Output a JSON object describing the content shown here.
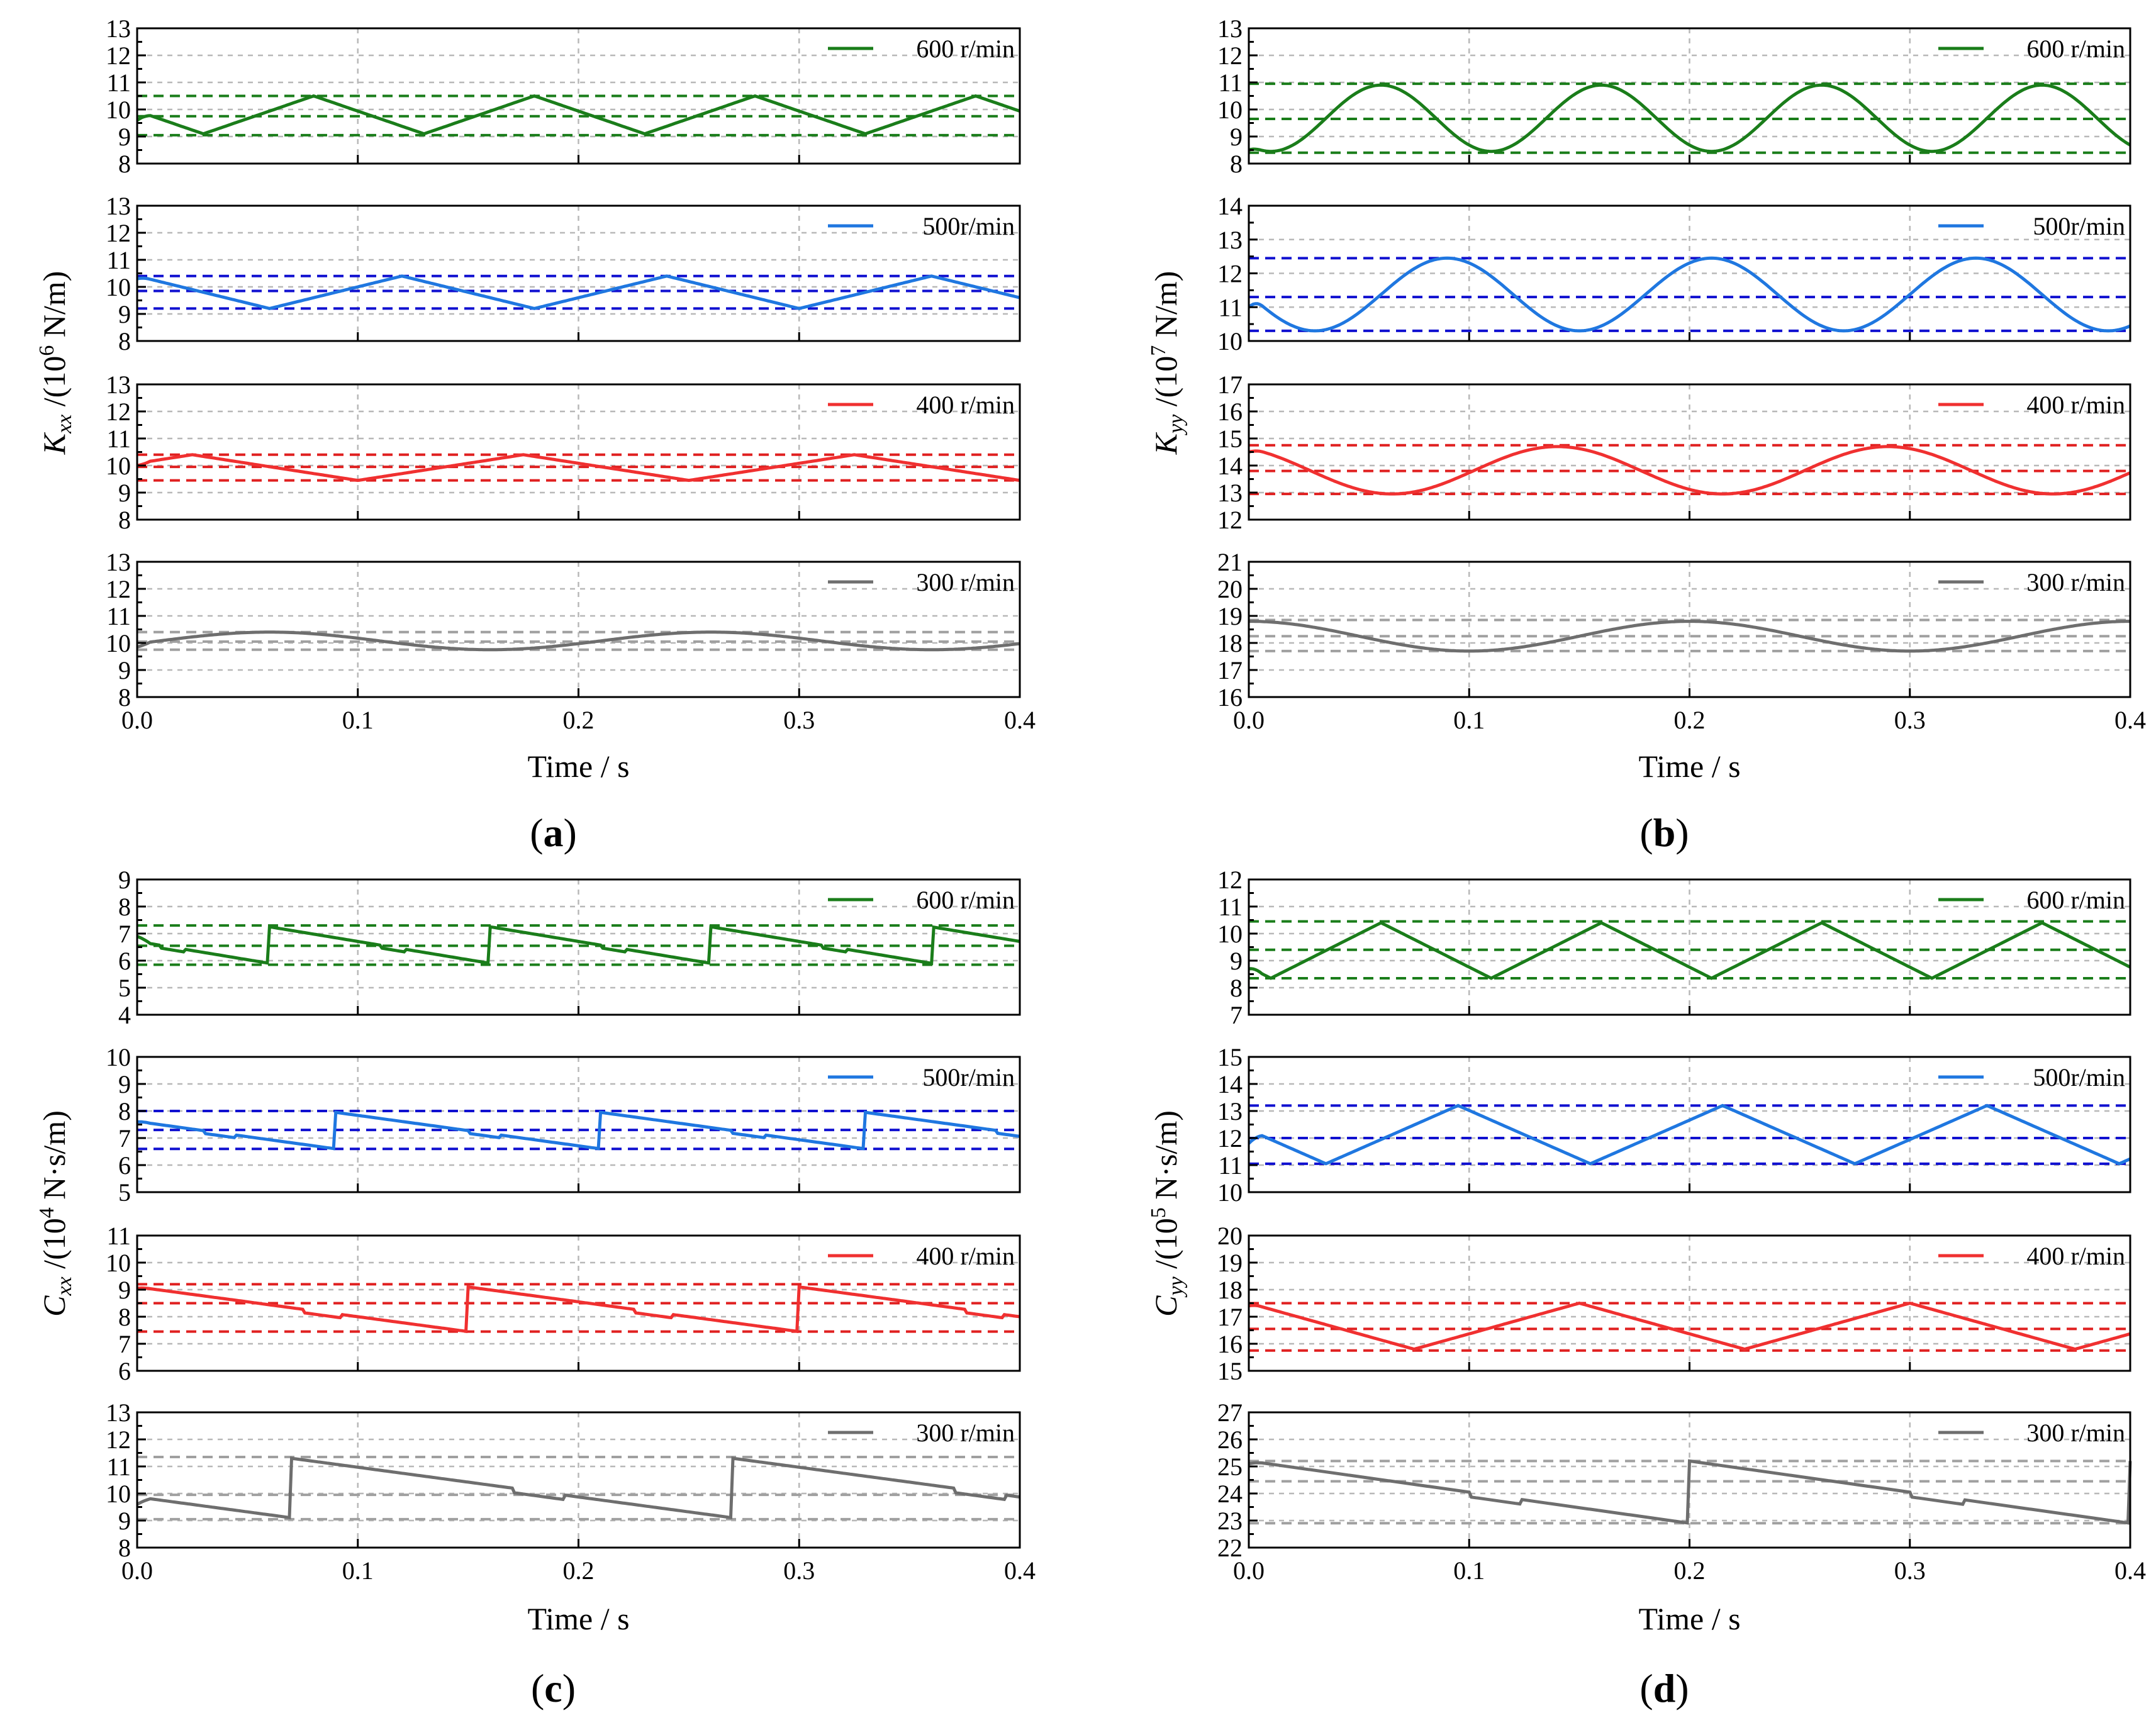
{
  "chart_data": [
    {
      "panel": "(a)",
      "type": "line",
      "xlabel": "Time / s",
      "ylabel_main": "K",
      "ylabel_sub": "xx",
      "ylabel_rest": " /(10",
      "ylabel_exp": "6",
      "ylabel_unit": " N/m",
      "xlim": [
        0,
        0.4
      ],
      "xticks": [
        "0.0",
        "0.1",
        "0.2",
        "0.3",
        "0.4"
      ],
      "subplots": [
        {
          "series": {
            "name": "600 r/min",
            "color": "#1a7d1a",
            "pattern": "triangle",
            "min": 9.1,
            "max": 10.5,
            "period": 0.1,
            "phase": 0.08,
            "start": 9.6
          },
          "ylim": [
            8,
            13
          ],
          "yticks": [
            8,
            9,
            10,
            11,
            12,
            13
          ],
          "ref_lines": [
            10.5,
            9.75,
            9.05
          ],
          "ref_color": "#1a7d1a"
        },
        {
          "series": {
            "name": "500r/min",
            "color": "#1f77e0",
            "pattern": "triangle",
            "min": 9.2,
            "max": 10.4,
            "period": 0.12,
            "phase": 0.12,
            "start": 10.3
          },
          "ylim": [
            8,
            13
          ],
          "yticks": [
            8,
            9,
            10,
            11,
            12,
            13
          ],
          "ref_lines": [
            10.4,
            9.85,
            9.2
          ],
          "ref_color": "#1010d0"
        },
        {
          "series": {
            "name": "400 r/min",
            "color": "#f03030",
            "pattern": "triangle",
            "min": 9.45,
            "max": 10.4,
            "period": 0.15,
            "phase": 0.025,
            "start": 10.0
          },
          "ylim": [
            8,
            13
          ],
          "yticks": [
            8,
            9,
            10,
            11,
            12,
            13
          ],
          "ref_lines": [
            10.4,
            9.95,
            9.45
          ],
          "ref_color": "#e02020"
        },
        {
          "series": {
            "name": "300 r/min",
            "color": "#6e6e6e",
            "pattern": "sine",
            "min": 9.75,
            "max": 10.4,
            "period": 0.2,
            "phase": 0.06,
            "start": 9.85
          },
          "ylim": [
            8,
            13
          ],
          "yticks": [
            8,
            9,
            10,
            11,
            12,
            13
          ],
          "ref_lines": [
            10.4,
            10.05,
            9.75
          ],
          "ref_color": "#a0a0a0"
        }
      ]
    },
    {
      "panel": "(b)",
      "type": "line",
      "xlabel": "Time / s",
      "ylabel_main": "K",
      "ylabel_sub": "yy",
      "ylabel_rest": " /(10",
      "ylabel_exp": "7",
      "ylabel_unit": " N/m",
      "xlim": [
        0,
        0.4
      ],
      "xticks": [
        "0.0",
        "0.1",
        "0.2",
        "0.3",
        "0.4"
      ],
      "subplots": [
        {
          "series": {
            "name": "600 r/min",
            "color": "#1a7d1a",
            "pattern": "sine",
            "min": 8.45,
            "max": 10.9,
            "period": 0.1,
            "phase": 0.06,
            "start": 8.5
          },
          "ylim": [
            8,
            13
          ],
          "yticks": [
            8,
            9,
            10,
            11,
            12,
            13
          ],
          "ref_lines": [
            10.95,
            9.65,
            8.4
          ],
          "ref_color": "#1a7d1a"
        },
        {
          "series": {
            "name": "500r/min",
            "color": "#1f77e0",
            "pattern": "sine",
            "min": 10.3,
            "max": 12.45,
            "period": 0.12,
            "phase": 0.09,
            "start": 11.0
          },
          "ylim": [
            10,
            14
          ],
          "yticks": [
            10,
            11,
            12,
            13,
            14
          ],
          "ref_lines": [
            12.45,
            11.3,
            10.3
          ],
          "ref_color": "#1010d0"
        },
        {
          "series": {
            "name": "400 r/min",
            "color": "#f03030",
            "pattern": "sine",
            "min": 12.95,
            "max": 14.7,
            "period": 0.15,
            "phase": 0.14,
            "start": 14.5
          },
          "ylim": [
            12,
            17
          ],
          "yticks": [
            12,
            13,
            14,
            15,
            16,
            17
          ],
          "ref_lines": [
            14.75,
            13.8,
            12.95
          ],
          "ref_color": "#e02020"
        },
        {
          "series": {
            "name": "300 r/min",
            "color": "#6e6e6e",
            "pattern": "sine",
            "min": 17.7,
            "max": 18.8,
            "period": 0.2,
            "phase": 0.0,
            "start": 18.8
          },
          "ylim": [
            16,
            21
          ],
          "yticks": [
            16,
            17,
            18,
            19,
            20,
            21
          ],
          "ref_lines": [
            18.85,
            18.25,
            17.7
          ],
          "ref_color": "#a0a0a0"
        }
      ]
    },
    {
      "panel": "(c)",
      "type": "line",
      "xlabel": "Time / s",
      "ylabel_main": "C",
      "ylabel_sub": "xx",
      "ylabel_rest": " /(10",
      "ylabel_exp": "4",
      "ylabel_unit": " N·s/m",
      "xlim": [
        0,
        0.4
      ],
      "xticks": [
        "0.0",
        "0.1",
        "0.2",
        "0.3",
        "0.4"
      ],
      "subplots": [
        {
          "series": {
            "name": "600 r/min",
            "color": "#1a7d1a",
            "pattern": "saw",
            "min": 5.9,
            "max": 7.25,
            "period": 0.1,
            "phase": 0.06,
            "start": 6.9
          },
          "ylim": [
            4,
            9
          ],
          "yticks": [
            4,
            5,
            6,
            7,
            8,
            9
          ],
          "ref_lines": [
            7.3,
            6.55,
            5.85
          ],
          "ref_color": "#1a7d1a"
        },
        {
          "series": {
            "name": "500r/min",
            "color": "#1f77e0",
            "pattern": "saw",
            "min": 6.6,
            "max": 7.95,
            "period": 0.12,
            "phase": 0.09,
            "start": 7.6
          },
          "ylim": [
            5,
            10
          ],
          "yticks": [
            5,
            6,
            7,
            8,
            9,
            10
          ],
          "ref_lines": [
            8.0,
            7.3,
            6.6
          ],
          "ref_color": "#1010d0"
        },
        {
          "series": {
            "name": "400 r/min",
            "color": "#f03030",
            "pattern": "saw",
            "min": 7.45,
            "max": 9.1,
            "period": 0.15,
            "phase": 0.0,
            "start": 9.05
          },
          "ylim": [
            6,
            11
          ],
          "yticks": [
            6,
            7,
            8,
            9,
            10,
            11
          ],
          "ref_lines": [
            9.2,
            8.5,
            7.45
          ],
          "ref_color": "#e02020"
        },
        {
          "series": {
            "name": "300 r/min",
            "color": "#6e6e6e",
            "pattern": "saw",
            "min": 9.1,
            "max": 11.3,
            "period": 0.2,
            "phase": 0.07,
            "start": 9.6
          },
          "ylim": [
            8,
            13
          ],
          "yticks": [
            8,
            9,
            10,
            11,
            12,
            13
          ],
          "ref_lines": [
            11.35,
            9.95,
            9.05
          ],
          "ref_color": "#a0a0a0"
        }
      ]
    },
    {
      "panel": "(d)",
      "type": "line",
      "xlabel": "Time / s",
      "ylabel_main": "C",
      "ylabel_sub": "yy",
      "ylabel_rest": " /(10",
      "ylabel_exp": "5",
      "ylabel_unit": " N·s/m",
      "xlim": [
        0,
        0.4
      ],
      "xticks": [
        "0.0",
        "0.1",
        "0.2",
        "0.3",
        "0.4"
      ],
      "subplots": [
        {
          "series": {
            "name": "600 r/min",
            "color": "#1a7d1a",
            "pattern": "triangle",
            "min": 8.35,
            "max": 10.4,
            "period": 0.1,
            "phase": 0.06,
            "start": 8.7
          },
          "ylim": [
            7,
            12
          ],
          "yticks": [
            7,
            8,
            9,
            10,
            11,
            12
          ],
          "ref_lines": [
            10.45,
            9.4,
            8.35
          ],
          "ref_color": "#1a7d1a"
        },
        {
          "series": {
            "name": "500r/min",
            "color": "#1f77e0",
            "pattern": "triangle",
            "min": 11.05,
            "max": 13.2,
            "period": 0.12,
            "phase": 0.095,
            "start": 11.8
          },
          "ylim": [
            10,
            15
          ],
          "yticks": [
            10,
            11,
            12,
            13,
            14,
            15
          ],
          "ref_lines": [
            13.2,
            12.0,
            11.05
          ],
          "ref_color": "#1010d0"
        },
        {
          "series": {
            "name": "400 r/min",
            "color": "#f03030",
            "pattern": "triangle",
            "min": 15.8,
            "max": 17.5,
            "period": 0.15,
            "phase": 0.0,
            "start": 17.4
          },
          "ylim": [
            15,
            20
          ],
          "yticks": [
            15,
            16,
            17,
            18,
            19,
            20
          ],
          "ref_lines": [
            17.5,
            16.55,
            15.75
          ],
          "ref_color": "#e02020"
        },
        {
          "series": {
            "name": "300 r/min",
            "color": "#6e6e6e",
            "pattern": "saw",
            "min": 22.9,
            "max": 25.2,
            "period": 0.2,
            "phase": 0.0,
            "start": 25.1
          },
          "ylim": [
            22,
            27
          ],
          "yticks": [
            22,
            23,
            24,
            25,
            26,
            27
          ],
          "ref_lines": [
            25.2,
            24.45,
            22.9
          ],
          "ref_color": "#a0a0a0"
        }
      ]
    }
  ]
}
